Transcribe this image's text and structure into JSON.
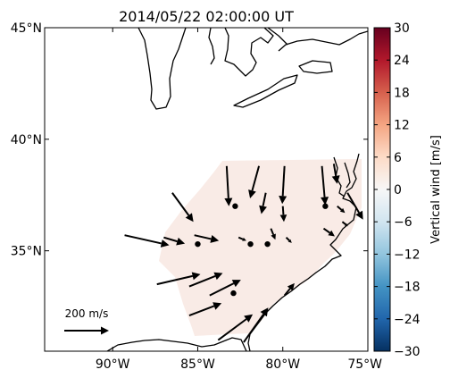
{
  "chart_data": {
    "type": "map",
    "title": "2014/05/22 02:00:00 UT",
    "lon_range": [
      -94,
      -75
    ],
    "lat_range": [
      30.5,
      45
    ],
    "lat_ticks": [
      {
        "value": 45,
        "label": "45°N"
      },
      {
        "value": 40,
        "label": "40°N"
      },
      {
        "value": 35,
        "label": "35°N"
      }
    ],
    "lon_ticks": [
      {
        "value": -90,
        "label": "90°W"
      },
      {
        "value": -85,
        "label": "85°W"
      },
      {
        "value": -80,
        "label": "80°W"
      },
      {
        "value": -75,
        "label": "75°W"
      }
    ],
    "colorbar": {
      "label": "Vertical wind [m/s]",
      "min": -30,
      "max": 30,
      "ticks": [
        "30",
        "24",
        "18",
        "12",
        "6",
        "0",
        "−6",
        "−12",
        "−18",
        "−24",
        "−30"
      ],
      "tick_values": [
        30,
        24,
        18,
        12,
        6,
        0,
        -6,
        -12,
        -18,
        -24,
        -30
      ],
      "colormap": [
        "#053061",
        "#2166ac",
        "#4393c3",
        "#92c5de",
        "#d1e5f0",
        "#f7f7f7",
        "#fddbc7",
        "#f4a582",
        "#d6604d",
        "#b2182b",
        "#67001f"
      ]
    },
    "field_color": "#f9ebe6",
    "reference_arrow": {
      "label": "200 m/s",
      "speed": 200
    },
    "vectors": [
      {
        "lon": -86.5,
        "lat": 37.6,
        "u": 95,
        "v": -130
      },
      {
        "lon": -83.3,
        "lat": 38.8,
        "u": 10,
        "v": -180
      },
      {
        "lon": -81.4,
        "lat": 38.8,
        "u": -40,
        "v": -145
      },
      {
        "lon": -79.9,
        "lat": 38.8,
        "u": -10,
        "v": -170
      },
      {
        "lon": -77.7,
        "lat": 38.8,
        "u": 15,
        "v": -175
      },
      {
        "lon": -81.0,
        "lat": 37.6,
        "u": -20,
        "v": -95
      },
      {
        "lon": -80.0,
        "lat": 37.0,
        "u": 5,
        "v": -70
      },
      {
        "lon": -77.0,
        "lat": 38.9,
        "u": 15,
        "v": -90
      },
      {
        "lon": -76.2,
        "lat": 37.6,
        "u": 70,
        "v": -120
      },
      {
        "lon": -76.8,
        "lat": 37.0,
        "u": 35,
        "v": -30
      },
      {
        "lon": -76.5,
        "lat": 36.3,
        "u": 25,
        "v": -20
      },
      {
        "lon": -77.6,
        "lat": 36.0,
        "u": 50,
        "v": -35
      },
      {
        "lon": -80.7,
        "lat": 36.0,
        "u": 20,
        "v": -50
      },
      {
        "lon": -89.3,
        "lat": 35.7,
        "u": 200,
        "v": -45
      },
      {
        "lon": -87.0,
        "lat": 35.6,
        "u": 95,
        "v": -28
      },
      {
        "lon": -85.2,
        "lat": 35.7,
        "u": 110,
        "v": -25
      },
      {
        "lon": -82.6,
        "lat": 35.6,
        "u": 35,
        "v": -15
      },
      {
        "lon": -79.8,
        "lat": 35.6,
        "u": 25,
        "v": -25
      },
      {
        "lon": -87.4,
        "lat": 33.5,
        "u": 195,
        "v": 45
      },
      {
        "lon": -85.5,
        "lat": 33.4,
        "u": 150,
        "v": 60
      },
      {
        "lon": -85.5,
        "lat": 32.1,
        "u": 145,
        "v": 55
      },
      {
        "lon": -84.3,
        "lat": 33.0,
        "u": 140,
        "v": 70
      },
      {
        "lon": -79.9,
        "lat": 33.0,
        "u": 45,
        "v": 55
      },
      {
        "lon": -83.8,
        "lat": 31.0,
        "u": 155,
        "v": 115
      },
      {
        "lon": -82.3,
        "lat": 30.9,
        "u": 110,
        "v": 155
      }
    ],
    "sites": [
      {
        "lon": -82.8,
        "lat": 37.0
      },
      {
        "lon": -77.5,
        "lat": 37.0
      },
      {
        "lon": -85.0,
        "lat": 35.3
      },
      {
        "lon": -81.9,
        "lat": 35.3
      },
      {
        "lon": -80.9,
        "lat": 35.3
      },
      {
        "lon": -82.9,
        "lat": 33.1
      }
    ]
  }
}
